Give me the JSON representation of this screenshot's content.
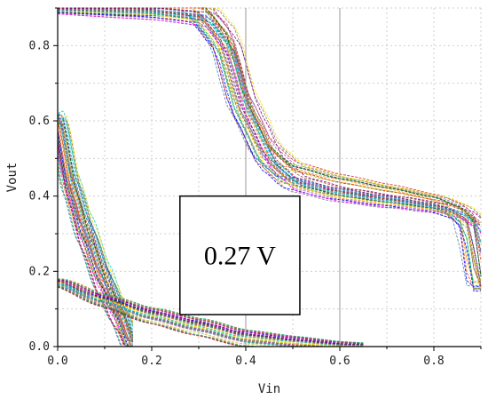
{
  "chart_data": {
    "type": "line",
    "title": "",
    "xlabel": "Vin",
    "ylabel": "Vout",
    "xlim": [
      0,
      0.9
    ],
    "ylim": [
      0,
      0.9
    ],
    "x_ticks": [
      {
        "value": 0.0,
        "label": "0.0"
      },
      {
        "value": 0.2,
        "label": "0.2"
      },
      {
        "value": 0.4,
        "label": "0.4"
      },
      {
        "value": 0.6,
        "label": "0.6"
      },
      {
        "value": 0.8,
        "label": "0.8"
      }
    ],
    "y_ticks": [
      {
        "value": 0.0,
        "label": "0.0"
      },
      {
        "value": 0.2,
        "label": "0.2"
      },
      {
        "value": 0.4,
        "label": "0.4"
      },
      {
        "value": 0.6,
        "label": "0.6"
      },
      {
        "value": 0.8,
        "label": "0.8"
      }
    ],
    "grid": true,
    "reference_lines_x": [
      0.4,
      0.6
    ],
    "annotation": {
      "text": "0.27 V",
      "x0": 0.26,
      "x1": 0.515,
      "y0": 0.085,
      "y1": 0.4
    },
    "monte_carlo_runs": 40,
    "families": [
      {
        "id": "vtc-forward",
        "points": [
          [
            0.0,
            0.9
          ],
          [
            0.2,
            0.9
          ],
          [
            0.3,
            0.89
          ],
          [
            0.35,
            0.82
          ],
          [
            0.4,
            0.62
          ],
          [
            0.45,
            0.5
          ],
          [
            0.5,
            0.45
          ],
          [
            0.6,
            0.42
          ],
          [
            0.7,
            0.4
          ],
          [
            0.8,
            0.38
          ],
          [
            0.85,
            0.36
          ],
          [
            0.88,
            0.33
          ],
          [
            0.9,
            0.16
          ]
        ],
        "x_spread": 0.035,
        "y_spread": 0.04
      },
      {
        "id": "steep-falling",
        "points": [
          [
            0.0,
            0.6
          ],
          [
            0.03,
            0.42
          ],
          [
            0.06,
            0.3
          ],
          [
            0.1,
            0.17
          ],
          [
            0.13,
            0.09
          ],
          [
            0.16,
            0.0
          ]
        ],
        "x_spread": 0.02,
        "y_spread": 0.05
      },
      {
        "id": "shallow-falling",
        "points": [
          [
            0.0,
            0.17
          ],
          [
            0.1,
            0.12
          ],
          [
            0.2,
            0.08
          ],
          [
            0.3,
            0.05
          ],
          [
            0.4,
            0.02
          ],
          [
            0.5,
            0.008
          ],
          [
            0.6,
            0.0
          ],
          [
            0.65,
            0.0
          ]
        ],
        "x_spread": 0.015,
        "y_spread": 0.025
      }
    ],
    "colors": [
      "#1f77b4",
      "#d62728",
      "#2ca02c",
      "#ff7f0e",
      "#9467bd",
      "#17becf",
      "#e377c2",
      "#8c564b",
      "#bcbd22",
      "#7f7f7f",
      "#0000ff",
      "#ff00ff",
      "#00a86b",
      "#ffd700",
      "#a0522d",
      "#006400",
      "#ff4500",
      "#4682b4",
      "#800080",
      "#00ced1"
    ]
  }
}
